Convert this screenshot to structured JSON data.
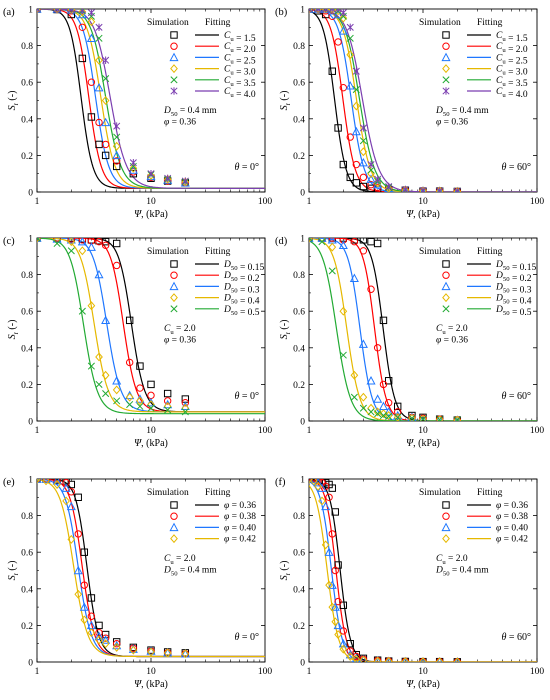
{
  "figure": {
    "panel_labels": [
      "(a)",
      "(b)",
      "(c)",
      "(d)",
      "(e)",
      "(f)"
    ]
  },
  "chart_data": [
    {
      "panel": "(a)",
      "type": "line",
      "xlabel": "Ψ, (kPa)",
      "ylabel": "Sr (-)",
      "xscale": "log",
      "xlim": [
        1,
        100
      ],
      "ylim": [
        0,
        1
      ],
      "xticks": [
        "1",
        "10",
        "100"
      ],
      "yticks": [
        "0",
        "0.2",
        "0.4",
        "0.6",
        "0.8",
        "1"
      ],
      "legend_header": [
        "Simulation",
        "Fitting"
      ],
      "legend_var": "Cu",
      "annotations": [
        "D50 = 0.4 mm",
        "φ = 0.36"
      ],
      "angle": "θ = 0°",
      "x_points": [
        1,
        1.5,
        2,
        2.5,
        3,
        3.5,
        4,
        5,
        7,
        10,
        14,
        20
      ],
      "series": [
        {
          "name": "1.5",
          "color": "#000000",
          "marker": "square",
          "psi": 2.4,
          "n": 9,
          "res": 0.02,
          "values": [
            1.0,
            0.997,
            0.97,
            0.73,
            0.41,
            0.26,
            0.2,
            0.14,
            0.1,
            0.075,
            0.06,
            0.05
          ]
        },
        {
          "name": "2.0",
          "color": "#ff0000",
          "marker": "circle",
          "psi": 2.8,
          "n": 8.5,
          "res": 0.02,
          "values": [
            1.0,
            0.998,
            0.99,
            0.9,
            0.6,
            0.38,
            0.26,
            0.17,
            0.11,
            0.08,
            0.06,
            0.05
          ]
        },
        {
          "name": "2.5",
          "color": "#1f77ff",
          "marker": "triangle",
          "psi": 3.2,
          "n": 8,
          "res": 0.02,
          "values": [
            1.0,
            1.0,
            0.995,
            0.97,
            0.84,
            0.57,
            0.38,
            0.2,
            0.12,
            0.085,
            0.065,
            0.05
          ]
        },
        {
          "name": "3.0",
          "color": "#e6b800",
          "marker": "diamond",
          "psi": 3.55,
          "n": 7.5,
          "res": 0.02,
          "values": [
            1.0,
            1.0,
            0.997,
            0.985,
            0.93,
            0.72,
            0.5,
            0.25,
            0.13,
            0.09,
            0.07,
            0.055
          ]
        },
        {
          "name": "3.5",
          "color": "#22aa33",
          "marker": "x",
          "psi": 3.9,
          "n": 7,
          "res": 0.02,
          "values": [
            1.0,
            1.0,
            0.998,
            0.99,
            0.96,
            0.84,
            0.62,
            0.3,
            0.14,
            0.095,
            0.07,
            0.055
          ]
        },
        {
          "name": "4.0",
          "color": "#7b3fb0",
          "marker": "asterisk",
          "psi": 4.25,
          "n": 6.5,
          "res": 0.02,
          "values": [
            1.0,
            1.0,
            0.999,
            0.995,
            0.98,
            0.9,
            0.72,
            0.36,
            0.16,
            0.1,
            0.075,
            0.06
          ]
        }
      ]
    },
    {
      "panel": "(b)",
      "type": "line",
      "xlabel": "Ψ, (kPa)",
      "ylabel": "Sr (-)",
      "xscale": "log",
      "xlim": [
        1,
        100
      ],
      "ylim": [
        0,
        1
      ],
      "xticks": [
        "1",
        "10",
        "100"
      ],
      "yticks": [
        "0",
        "0.2",
        "0.4",
        "0.6",
        "0.8",
        "1"
      ],
      "legend_header": [
        "Simulation",
        "Fitting"
      ],
      "legend_var": "Cu",
      "annotations": [
        "D50 = 0.4 mm",
        "φ = 0.36"
      ],
      "angle": "θ = 60°",
      "x_points": [
        1,
        1.2,
        1.4,
        1.6,
        1.8,
        2,
        2.3,
        2.6,
        3,
        3.5,
        4,
        5,
        7,
        10,
        14,
        20
      ],
      "series": [
        {
          "name": "1.5",
          "color": "#000000",
          "marker": "square",
          "psi": 1.65,
          "n": 9,
          "res": 0.0,
          "values": [
            1.0,
            0.99,
            0.97,
            0.66,
            0.35,
            0.15,
            0.08,
            0.05,
            0.03,
            0.02,
            0.015,
            0.01,
            0.01,
            0.005,
            0.005,
            0.003
          ]
        },
        {
          "name": "2.0",
          "color": "#ff0000",
          "marker": "circle",
          "psi": 1.95,
          "n": 8.5,
          "res": 0.0,
          "values": [
            1.0,
            1.0,
            0.99,
            0.96,
            0.82,
            0.57,
            0.3,
            0.15,
            0.08,
            0.04,
            0.025,
            0.015,
            0.01,
            0.005,
            0.005,
            0.003
          ]
        },
        {
          "name": "2.5",
          "color": "#1f77ff",
          "marker": "triangle",
          "psi": 2.3,
          "n": 8,
          "res": 0.0,
          "values": [
            1.0,
            1.0,
            1.0,
            0.99,
            0.97,
            0.88,
            0.58,
            0.33,
            0.16,
            0.07,
            0.04,
            0.02,
            0.01,
            0.006,
            0.005,
            0.003
          ]
        },
        {
          "name": "3.0",
          "color": "#e6b800",
          "marker": "diamond",
          "psi": 2.55,
          "n": 7.5,
          "res": 0.0,
          "values": [
            1.0,
            1.0,
            1.0,
            1.0,
            0.99,
            0.95,
            0.75,
            0.47,
            0.22,
            0.1,
            0.05,
            0.02,
            0.01,
            0.006,
            0.005,
            0.003
          ]
        },
        {
          "name": "3.5",
          "color": "#22aa33",
          "marker": "x",
          "psi": 2.7,
          "n": 7,
          "res": 0.0,
          "values": [
            1.0,
            1.0,
            1.0,
            1.0,
            0.99,
            0.96,
            0.84,
            0.56,
            0.28,
            0.12,
            0.06,
            0.025,
            0.012,
            0.007,
            0.005,
            0.003
          ]
        },
        {
          "name": "4.0",
          "color": "#7b3fb0",
          "marker": "asterisk",
          "psi": 2.85,
          "n": 6.5,
          "res": 0.0,
          "values": [
            1.0,
            1.0,
            1.0,
            1.0,
            1.0,
            0.98,
            0.9,
            0.66,
            0.35,
            0.15,
            0.07,
            0.03,
            0.013,
            0.008,
            0.005,
            0.003
          ]
        }
      ]
    },
    {
      "panel": "(c)",
      "type": "line",
      "xlabel": "Ψ, (kPa)",
      "ylabel": "Sr (-)",
      "xscale": "log",
      "xlim": [
        1,
        100
      ],
      "ylim": [
        0,
        1
      ],
      "xticks": [
        "1",
        "10",
        "100"
      ],
      "yticks": [
        "0",
        "0.2",
        "0.4",
        "0.6",
        "0.8",
        "1"
      ],
      "legend_header": [
        "Simulation",
        "Fitting"
      ],
      "legend_var": "D50",
      "annotations": [
        "Cu = 2.0",
        "φ = 0.36"
      ],
      "angle": "θ = 0°",
      "x_points": [
        1,
        1.5,
        2,
        2.5,
        3,
        3.5,
        4,
        5,
        6.5,
        8,
        10,
        14,
        20
      ],
      "series": [
        {
          "name": "0.15",
          "color": "#000000",
          "marker": "square",
          "psi": 6.6,
          "n": 8,
          "res": 0.05,
          "values": [
            1.0,
            1.0,
            1.0,
            0.995,
            0.99,
            0.985,
            0.98,
            0.97,
            0.55,
            0.3,
            0.2,
            0.15,
            0.12
          ]
        },
        {
          "name": "0.2",
          "color": "#ff0000",
          "marker": "circle",
          "psi": 5.6,
          "n": 8,
          "res": 0.05,
          "values": [
            1.0,
            1.0,
            0.995,
            0.99,
            0.985,
            0.98,
            0.96,
            0.85,
            0.32,
            0.18,
            0.14,
            0.11,
            0.1
          ]
        },
        {
          "name": "0.3",
          "color": "#1f77ff",
          "marker": "triangle",
          "psi": 4.0,
          "n": 7.5,
          "res": 0.05,
          "values": [
            1.0,
            0.995,
            0.99,
            0.98,
            0.95,
            0.8,
            0.55,
            0.22,
            0.14,
            0.12,
            0.1,
            0.09,
            0.08
          ]
        },
        {
          "name": "0.4",
          "color": "#e6b800",
          "marker": "diamond",
          "psi": 3.1,
          "n": 7.5,
          "res": 0.05,
          "values": [
            1.0,
            0.99,
            0.98,
            0.93,
            0.63,
            0.35,
            0.25,
            0.17,
            0.13,
            0.11,
            0.09,
            0.08,
            0.07
          ]
        },
        {
          "name": "0.5",
          "color": "#22aa33",
          "marker": "x",
          "psi": 2.5,
          "n": 7.5,
          "res": 0.04,
          "values": [
            1.0,
            0.97,
            0.93,
            0.6,
            0.3,
            0.2,
            0.15,
            0.11,
            0.09,
            0.08,
            0.07,
            0.06,
            0.05
          ]
        }
      ]
    },
    {
      "panel": "(d)",
      "type": "line",
      "xlabel": "Ψ, (kPa)",
      "ylabel": "Sr (-)",
      "xscale": "log",
      "xlim": [
        1,
        100
      ],
      "ylim": [
        0,
        1
      ],
      "xticks": [
        "1",
        "10",
        "100"
      ],
      "yticks": [
        "0",
        "0.2",
        "0.4",
        "0.6",
        "0.8",
        "1"
      ],
      "legend_header": [
        "Simulation",
        "Fitting"
      ],
      "legend_var": "D50",
      "annotations": [
        "Cu = 2.0",
        "φ = 0.36"
      ],
      "angle": "θ = 60°",
      "x_points": [
        1,
        1.3,
        1.6,
        2,
        2.5,
        3,
        3.5,
        4,
        4.5,
        5,
        6,
        8,
        10,
        14,
        20
      ],
      "series": [
        {
          "name": "0.15",
          "color": "#000000",
          "marker": "square",
          "psi": 4.4,
          "n": 9,
          "res": 0.0,
          "values": [
            1.0,
            1.0,
            1.0,
            1.0,
            0.99,
            0.99,
            0.98,
            0.97,
            0.55,
            0.22,
            0.08,
            0.03,
            0.02,
            0.01,
            0.005
          ]
        },
        {
          "name": "0.2",
          "color": "#ff0000",
          "marker": "circle",
          "psi": 3.7,
          "n": 9,
          "res": 0.0,
          "values": [
            1.0,
            1.0,
            1.0,
            0.99,
            0.98,
            0.93,
            0.72,
            0.4,
            0.2,
            0.1,
            0.05,
            0.02,
            0.015,
            0.01,
            0.005
          ]
        },
        {
          "name": "0.3",
          "color": "#1f77ff",
          "marker": "triangle",
          "psi": 2.75,
          "n": 8.5,
          "res": 0.0,
          "values": [
            1.0,
            1.0,
            0.99,
            0.96,
            0.78,
            0.42,
            0.22,
            0.12,
            0.08,
            0.05,
            0.03,
            0.02,
            0.01,
            0.008,
            0.005
          ]
        },
        {
          "name": "0.4",
          "color": "#e6b800",
          "marker": "diamond",
          "psi": 2.1,
          "n": 8,
          "res": 0.0,
          "values": [
            1.0,
            1.0,
            0.95,
            0.6,
            0.25,
            0.13,
            0.07,
            0.05,
            0.04,
            0.03,
            0.02,
            0.015,
            0.01,
            0.008,
            0.005
          ]
        },
        {
          "name": "0.5",
          "color": "#22aa33",
          "marker": "x",
          "psi": 1.7,
          "n": 7.5,
          "res": 0.0,
          "values": [
            1.0,
            0.98,
            0.82,
            0.36,
            0.13,
            0.07,
            0.05,
            0.04,
            0.03,
            0.025,
            0.02,
            0.015,
            0.01,
            0.008,
            0.005
          ]
        }
      ]
    },
    {
      "panel": "(e)",
      "type": "line",
      "xlabel": "Ψ, (kPa)",
      "ylabel": "Sr (-)",
      "xscale": "log",
      "xlim": [
        1,
        100
      ],
      "ylim": [
        0,
        1
      ],
      "xticks": [
        "1",
        "10",
        "100"
      ],
      "yticks": [
        "0",
        "0.2",
        "0.4",
        "0.6",
        "0.8",
        "1"
      ],
      "legend_header": [
        "Simulation",
        "Fitting"
      ],
      "legend_var": "φ",
      "annotations": [
        "Cu = 2.0",
        "D50 = 0.4 mm"
      ],
      "angle": "θ = 0°",
      "x_points": [
        1,
        1.2,
        1.5,
        1.8,
        2,
        2.3,
        2.6,
        3,
        3.5,
        4,
        5,
        7,
        10,
        14,
        20
      ],
      "series": [
        {
          "name": "0.36",
          "color": "#000000",
          "marker": "square",
          "psi": 2.7,
          "n": 9,
          "res": 0.03,
          "values": [
            1.0,
            1.0,
            0.995,
            0.99,
            0.97,
            0.9,
            0.6,
            0.35,
            0.2,
            0.15,
            0.11,
            0.08,
            0.065,
            0.055,
            0.05
          ]
        },
        {
          "name": "0.38",
          "color": "#ff0000",
          "marker": "circle",
          "psi": 2.45,
          "n": 8.5,
          "res": 0.03,
          "values": [
            1.0,
            1.0,
            0.99,
            0.98,
            0.93,
            0.7,
            0.42,
            0.25,
            0.16,
            0.13,
            0.1,
            0.075,
            0.06,
            0.05,
            0.045
          ]
        },
        {
          "name": "0.40",
          "color": "#1f77ff",
          "marker": "triangle",
          "psi": 2.25,
          "n": 8,
          "res": 0.03,
          "values": [
            1.0,
            1.0,
            0.99,
            0.95,
            0.85,
            0.5,
            0.3,
            0.2,
            0.14,
            0.12,
            0.09,
            0.07,
            0.06,
            0.05,
            0.045
          ]
        },
        {
          "name": "0.42",
          "color": "#e6b800",
          "marker": "diamond",
          "psi": 2.05,
          "n": 7.5,
          "res": 0.03,
          "values": [
            1.0,
            0.99,
            0.97,
            0.88,
            0.67,
            0.37,
            0.23,
            0.16,
            0.12,
            0.1,
            0.08,
            0.065,
            0.055,
            0.05,
            0.045
          ]
        }
      ]
    },
    {
      "panel": "(f)",
      "type": "line",
      "xlabel": "Ψ, (kPa)",
      "ylabel": "Sr (-)",
      "xscale": "log",
      "xlim": [
        1,
        100
      ],
      "ylim": [
        0,
        1
      ],
      "xticks": [
        "1",
        "10",
        "100"
      ],
      "yticks": [
        "0",
        "0.2",
        "0.4",
        "0.6",
        "0.8",
        "1"
      ],
      "legend_header": [
        "Simulation",
        "Fitting"
      ],
      "legend_var": "φ",
      "annotations": [
        "Cu = 2.0",
        "D50 = 0.4 mm"
      ],
      "angle": "θ = 60°",
      "x_points": [
        1,
        1.1,
        1.2,
        1.3,
        1.4,
        1.5,
        1.6,
        1.7,
        1.8,
        2,
        2.3,
        2.6,
        3,
        4,
        5,
        7,
        10,
        14,
        20
      ],
      "series": [
        {
          "name": "0.36",
          "color": "#000000",
          "marker": "square",
          "psi": 1.85,
          "n": 10,
          "res": 0.0,
          "values": [
            1.0,
            1.0,
            1.0,
            0.99,
            0.98,
            0.97,
            0.95,
            0.82,
            0.53,
            0.31,
            0.1,
            0.04,
            0.02,
            0.01,
            0.005,
            0.003,
            0.002,
            0.002,
            0.001
          ]
        },
        {
          "name": "0.38",
          "color": "#ff0000",
          "marker": "circle",
          "psi": 1.7,
          "n": 10,
          "res": 0.0,
          "values": [
            1.0,
            1.0,
            0.99,
            0.98,
            0.96,
            0.9,
            0.7,
            0.5,
            0.33,
            0.17,
            0.06,
            0.03,
            0.015,
            0.008,
            0.005,
            0.003,
            0.002,
            0.002,
            0.001
          ]
        },
        {
          "name": "0.40",
          "color": "#1f77ff",
          "marker": "triangle",
          "psi": 1.55,
          "n": 9.5,
          "res": 0.0,
          "values": [
            1.0,
            1.0,
            0.98,
            0.95,
            0.85,
            0.6,
            0.42,
            0.3,
            0.2,
            0.1,
            0.04,
            0.02,
            0.012,
            0.006,
            0.004,
            0.003,
            0.002,
            0.002,
            0.001
          ]
        },
        {
          "name": "0.42",
          "color": "#e6b800",
          "marker": "diamond",
          "psi": 1.42,
          "n": 9,
          "res": 0.0,
          "values": [
            1.0,
            0.99,
            0.96,
            0.88,
            0.64,
            0.42,
            0.3,
            0.22,
            0.15,
            0.07,
            0.03,
            0.015,
            0.01,
            0.005,
            0.004,
            0.003,
            0.002,
            0.002,
            0.001
          ]
        }
      ]
    }
  ]
}
